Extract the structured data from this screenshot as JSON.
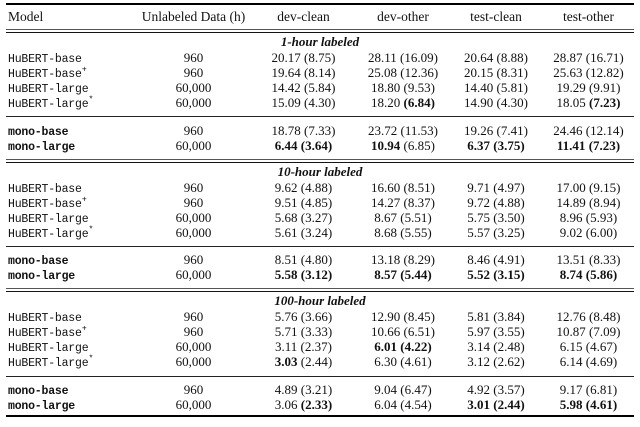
{
  "table": {
    "columns": [
      "Model",
      "Unlabeled Data (h)",
      "dev-clean",
      "dev-other",
      "test-clean",
      "test-other"
    ],
    "sections": [
      {
        "label": "1-hour labeled",
        "groups": [
          {
            "rows": [
              {
                "model": "HuBERT-base",
                "sup": "",
                "bold_model": false,
                "unlabeled": "960",
                "cells": [
                  {
                    "m": "20.17",
                    "p": "8.75"
                  },
                  {
                    "m": "28.11",
                    "p": "16.09"
                  },
                  {
                    "m": "20.64",
                    "p": "8.88"
                  },
                  {
                    "m": "28.87",
                    "p": "16.71"
                  }
                ]
              },
              {
                "model": "HuBERT-base",
                "sup": "+",
                "bold_model": false,
                "unlabeled": "960",
                "cells": [
                  {
                    "m": "19.64",
                    "p": "8.14"
                  },
                  {
                    "m": "25.08",
                    "p": "12.36"
                  },
                  {
                    "m": "20.15",
                    "p": "8.31"
                  },
                  {
                    "m": "25.63",
                    "p": "12.82"
                  }
                ]
              },
              {
                "model": "HuBERT-large",
                "sup": "",
                "bold_model": false,
                "unlabeled": "60,000",
                "cells": [
                  {
                    "m": "14.42",
                    "p": "5.84"
                  },
                  {
                    "m": "18.80",
                    "p": "9.53"
                  },
                  {
                    "m": "14.40",
                    "p": "5.81"
                  },
                  {
                    "m": "19.29",
                    "p": "9.91"
                  }
                ]
              },
              {
                "model": "HuBERT-large",
                "sup": "*",
                "bold_model": false,
                "unlabeled": "60,000",
                "cells": [
                  {
                    "m": "15.09",
                    "p": "4.30"
                  },
                  {
                    "m": "18.20",
                    "p": "6.84",
                    "pb": true
                  },
                  {
                    "m": "14.90",
                    "p": "4.30"
                  },
                  {
                    "m": "18.05",
                    "p": "7.23",
                    "pb": true
                  }
                ]
              }
            ]
          },
          {
            "rows": [
              {
                "model": "mono-base",
                "sup": "",
                "bold_model": true,
                "unlabeled": "960",
                "cells": [
                  {
                    "m": "18.78",
                    "p": "7.33"
                  },
                  {
                    "m": "23.72",
                    "p": "11.53"
                  },
                  {
                    "m": "19.26",
                    "p": "7.41"
                  },
                  {
                    "m": "24.46",
                    "p": "12.14"
                  }
                ]
              },
              {
                "model": "mono-large",
                "sup": "",
                "bold_model": true,
                "unlabeled": "60,000",
                "cells": [
                  {
                    "m": "6.44",
                    "p": "3.64",
                    "mb": true,
                    "pb": true
                  },
                  {
                    "m": "10.94",
                    "p": "6.85",
                    "mb": true
                  },
                  {
                    "m": "6.37",
                    "p": "3.75",
                    "mb": true,
                    "pb": true
                  },
                  {
                    "m": "11.41",
                    "p": "7.23",
                    "mb": true,
                    "pb": true
                  }
                ]
              }
            ]
          }
        ]
      },
      {
        "label": "10-hour labeled",
        "groups": [
          {
            "rows": [
              {
                "model": "HuBERT-base",
                "sup": "",
                "bold_model": false,
                "unlabeled": "960",
                "cells": [
                  {
                    "m": "9.62",
                    "p": "4.88"
                  },
                  {
                    "m": "16.60",
                    "p": "8.51"
                  },
                  {
                    "m": "9.71",
                    "p": "4.97"
                  },
                  {
                    "m": "17.00",
                    "p": "9.15"
                  }
                ]
              },
              {
                "model": "HuBERT-base",
                "sup": "+",
                "bold_model": false,
                "unlabeled": "960",
                "cells": [
                  {
                    "m": "9.51",
                    "p": "4.85"
                  },
                  {
                    "m": "14.27",
                    "p": "8.37"
                  },
                  {
                    "m": "9.72",
                    "p": "4.88"
                  },
                  {
                    "m": "14.89",
                    "p": "8.94"
                  }
                ]
              },
              {
                "model": "HuBERT-large",
                "sup": "",
                "bold_model": false,
                "unlabeled": "60,000",
                "cells": [
                  {
                    "m": "5.68",
                    "p": "3.27"
                  },
                  {
                    "m": "8.67",
                    "p": "5.51"
                  },
                  {
                    "m": "5.75",
                    "p": "3.50"
                  },
                  {
                    "m": "8.96",
                    "p": "5.93"
                  }
                ]
              },
              {
                "model": "HuBERT-large",
                "sup": "*",
                "bold_model": false,
                "unlabeled": "60,000",
                "cells": [
                  {
                    "m": "5.61",
                    "p": "3.24"
                  },
                  {
                    "m": "8.68",
                    "p": "5.55"
                  },
                  {
                    "m": "5.57",
                    "p": "3.25"
                  },
                  {
                    "m": "9.02",
                    "p": "6.00"
                  }
                ]
              }
            ]
          },
          {
            "rows": [
              {
                "model": "mono-base",
                "sup": "",
                "bold_model": true,
                "unlabeled": "960",
                "cells": [
                  {
                    "m": "8.51",
                    "p": "4.80"
                  },
                  {
                    "m": "13.18",
                    "p": "8.29"
                  },
                  {
                    "m": "8.46",
                    "p": "4.91"
                  },
                  {
                    "m": "13.51",
                    "p": "8.33"
                  }
                ]
              },
              {
                "model": "mono-large",
                "sup": "",
                "bold_model": true,
                "unlabeled": "60,000",
                "cells": [
                  {
                    "m": "5.58",
                    "p": "3.12",
                    "mb": true,
                    "pb": true
                  },
                  {
                    "m": "8.57",
                    "p": "5.44",
                    "mb": true,
                    "pb": true
                  },
                  {
                    "m": "5.52",
                    "p": "3.15",
                    "mb": true,
                    "pb": true
                  },
                  {
                    "m": "8.74",
                    "p": "5.86",
                    "mb": true,
                    "pb": true
                  }
                ]
              }
            ]
          }
        ]
      },
      {
        "label": "100-hour labeled",
        "groups": [
          {
            "rows": [
              {
                "model": "HuBERT-base",
                "sup": "",
                "bold_model": false,
                "unlabeled": "960",
                "cells": [
                  {
                    "m": "5.76",
                    "p": "3.66"
                  },
                  {
                    "m": "12.90",
                    "p": "8.45"
                  },
                  {
                    "m": "5.81",
                    "p": "3.84"
                  },
                  {
                    "m": "12.76",
                    "p": "8.48"
                  }
                ]
              },
              {
                "model": "HuBERT-base",
                "sup": "+",
                "bold_model": false,
                "unlabeled": "960",
                "cells": [
                  {
                    "m": "5.71",
                    "p": "3.33"
                  },
                  {
                    "m": "10.66",
                    "p": "6.51"
                  },
                  {
                    "m": "5.97",
                    "p": "3.55"
                  },
                  {
                    "m": "10.87",
                    "p": "7.09"
                  }
                ]
              },
              {
                "model": "HuBERT-large",
                "sup": "",
                "bold_model": false,
                "unlabeled": "60,000",
                "cells": [
                  {
                    "m": "3.11",
                    "p": "2.37"
                  },
                  {
                    "m": "6.01",
                    "p": "4.22",
                    "mb": true,
                    "pb": true
                  },
                  {
                    "m": "3.14",
                    "p": "2.48"
                  },
                  {
                    "m": "6.15",
                    "p": "4.67"
                  }
                ]
              },
              {
                "model": "HuBERT-large",
                "sup": "*",
                "bold_model": false,
                "unlabeled": "60,000",
                "cells": [
                  {
                    "m": "3.03",
                    "p": "2.44",
                    "mb": true
                  },
                  {
                    "m": "6.30",
                    "p": "4.61"
                  },
                  {
                    "m": "3.12",
                    "p": "2.62"
                  },
                  {
                    "m": "6.14",
                    "p": "4.69"
                  }
                ]
              }
            ]
          },
          {
            "rows": [
              {
                "model": "mono-base",
                "sup": "",
                "bold_model": true,
                "unlabeled": "960",
                "cells": [
                  {
                    "m": "4.89",
                    "p": "3.21"
                  },
                  {
                    "m": "9.04",
                    "p": "6.47"
                  },
                  {
                    "m": "4.92",
                    "p": "3.57"
                  },
                  {
                    "m": "9.17",
                    "p": "6.81"
                  }
                ]
              },
              {
                "model": "mono-large",
                "sup": "",
                "bold_model": true,
                "unlabeled": "60,000",
                "cells": [
                  {
                    "m": "3.06",
                    "p": "2.33",
                    "pb": true
                  },
                  {
                    "m": "6.04",
                    "p": "4.54"
                  },
                  {
                    "m": "3.01",
                    "p": "2.44",
                    "mb": true,
                    "pb": true
                  },
                  {
                    "m": "5.98",
                    "p": "4.61",
                    "mb": true,
                    "pb": true
                  }
                ]
              }
            ]
          }
        ]
      }
    ]
  }
}
